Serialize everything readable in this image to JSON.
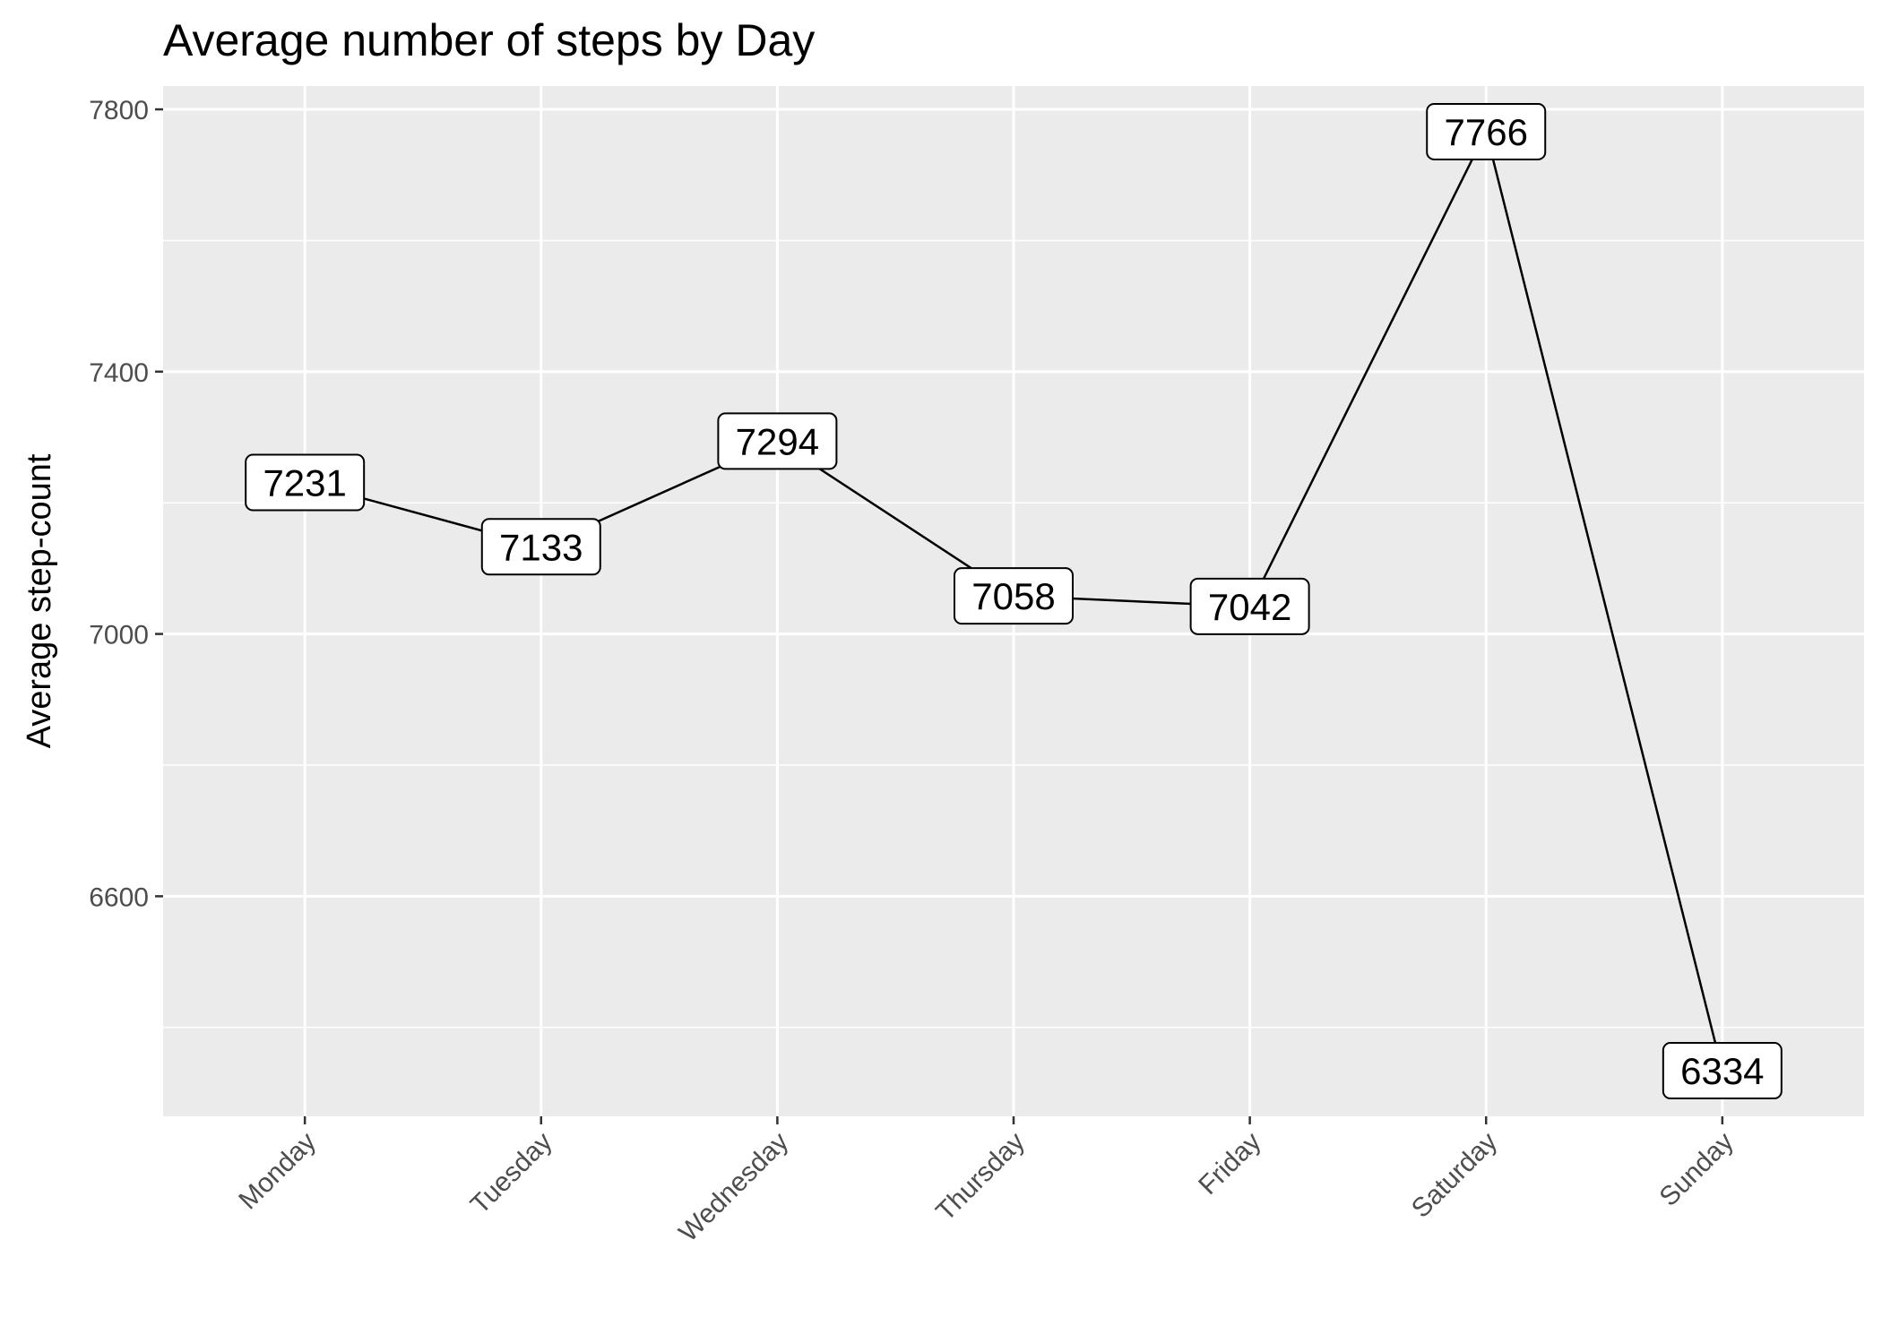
{
  "chart_data": {
    "type": "line",
    "title": "Average number of steps by Day",
    "xlabel": "",
    "ylabel": "Average step-count",
    "categories": [
      "Monday",
      "Tuesday",
      "Wednesday",
      "Thursday",
      "Friday",
      "Saturday",
      "Sunday"
    ],
    "series": [
      {
        "values": [
          7231,
          7133,
          7294,
          7058,
          7042,
          7766,
          6334
        ]
      }
    ],
    "data_labels": [
      "7231",
      "7133",
      "7294",
      "7058",
      "7042",
      "7766",
      "6334"
    ],
    "yticks": [
      6600,
      7000,
      7400,
      7800
    ],
    "ytick_labels": [
      "6600",
      "7000",
      "7400",
      "7800"
    ],
    "ylim": [
      6264.4,
      7835.6
    ],
    "grid": true,
    "legend": "none",
    "colors": {
      "panel_background": "#ebebeb",
      "grid_line": "#ffffff",
      "series_line": "#000000",
      "label_fill": "#ffffff",
      "label_border": "#000000",
      "tick_text": "#4d4d4d",
      "tick_mark": "#333333"
    }
  }
}
